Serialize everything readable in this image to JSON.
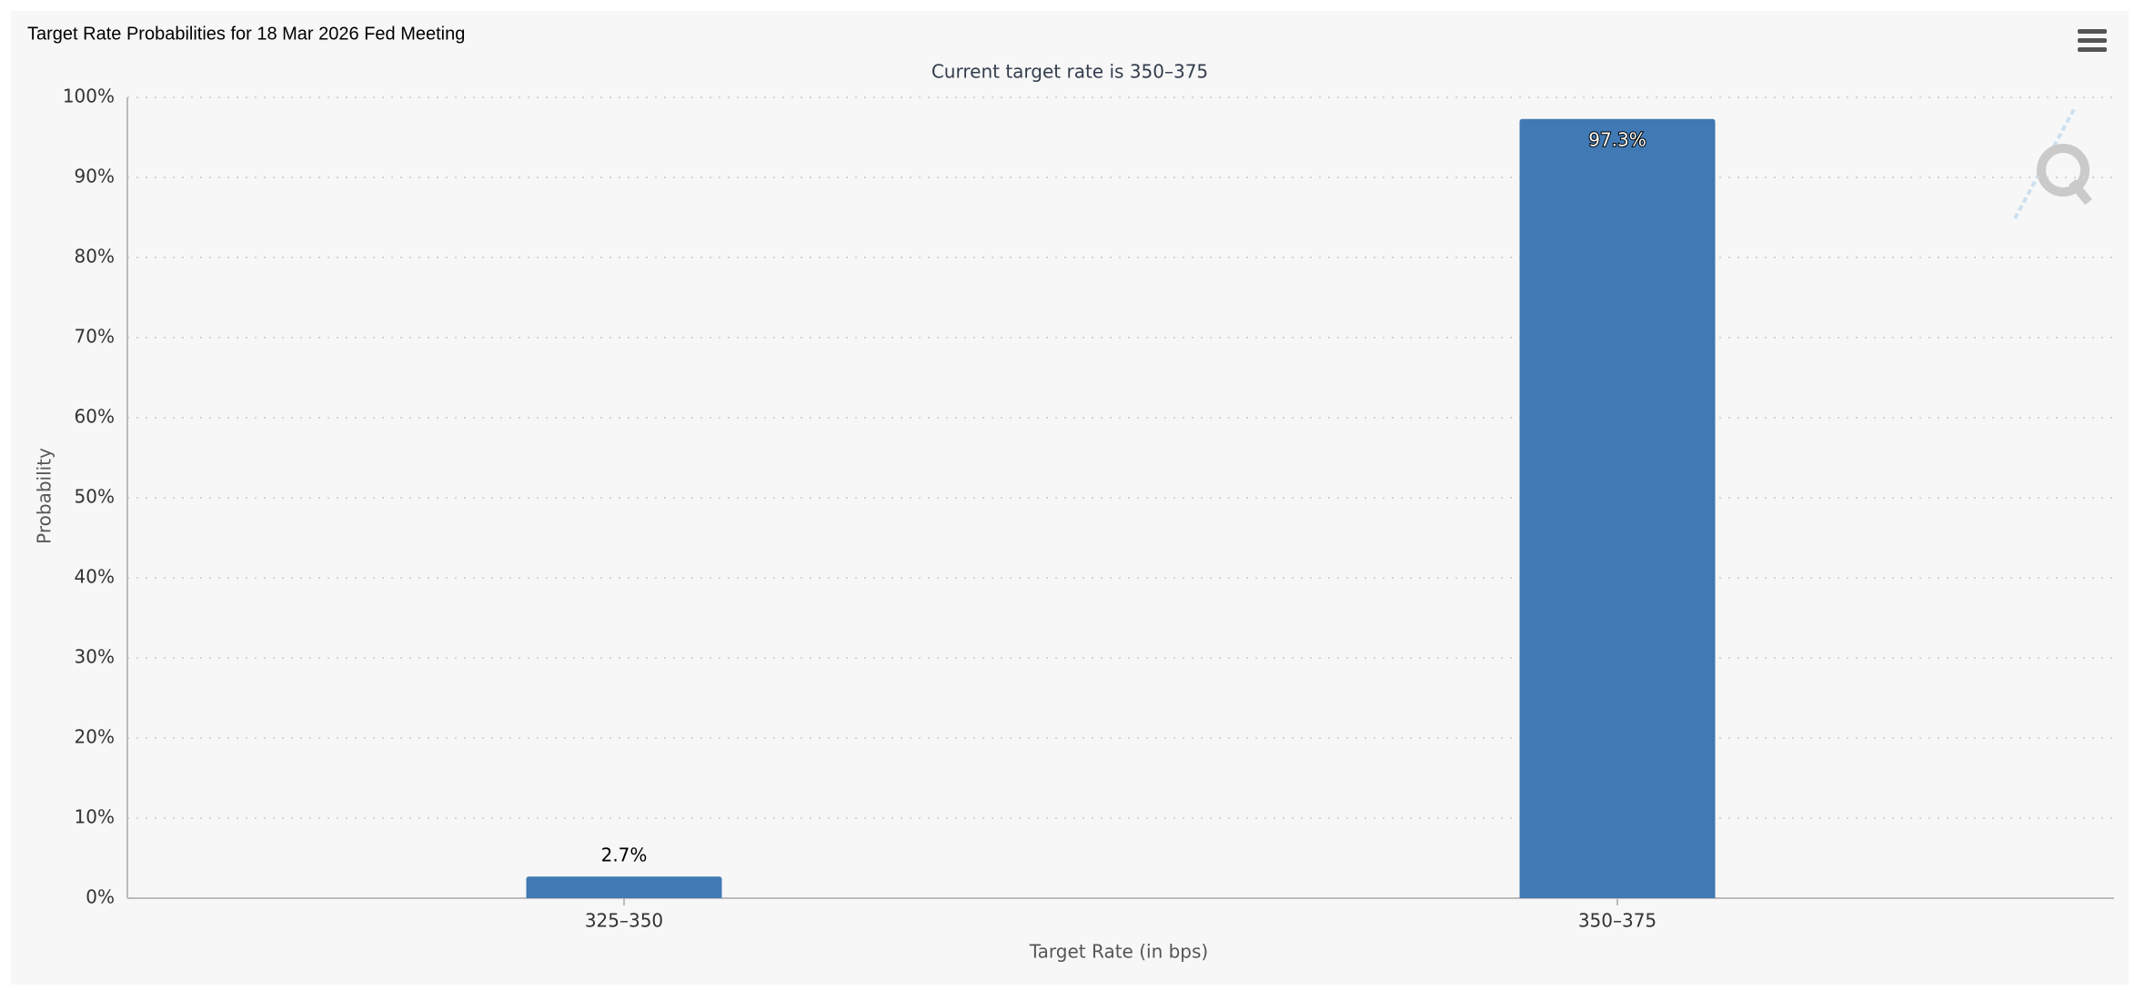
{
  "chart_data": {
    "type": "bar",
    "title": "Target Rate Probabilities for 18 Mar 2026 Fed Meeting",
    "subtitle": "Current target rate is 350–375",
    "x_label": "Target Rate (in bps)",
    "y_label": "Probability",
    "categories": [
      "325–350",
      "350–375"
    ],
    "values": [
      2.7,
      97.3
    ],
    "value_labels": [
      "2.7%",
      "97.3%"
    ],
    "color": "#4079b3",
    "ylim": [
      0,
      100
    ],
    "yticks": [
      {
        "value": 0,
        "label": "0%"
      },
      {
        "value": 10,
        "label": "10%"
      },
      {
        "value": 20,
        "label": "20%"
      },
      {
        "value": 30,
        "label": "30%"
      },
      {
        "value": 40,
        "label": "40%"
      },
      {
        "value": 50,
        "label": "50%"
      },
      {
        "value": 60,
        "label": "60%"
      },
      {
        "value": 70,
        "label": "70%"
      },
      {
        "value": 80,
        "label": "80%"
      },
      {
        "value": 90,
        "label": "90%"
      },
      {
        "value": 100,
        "label": "100%"
      }
    ],
    "grid": true
  }
}
